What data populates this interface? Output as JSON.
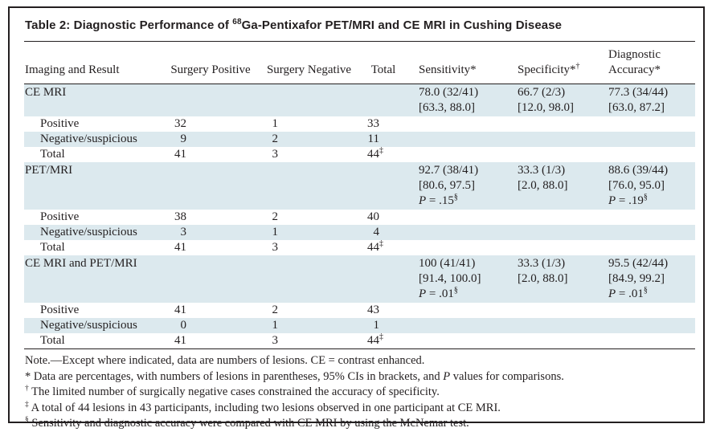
{
  "title": {
    "prefix": "Table 2: Diagnostic Performance of ",
    "isotope": "68",
    "suffix": "Ga-Pentixafor PET/MRI and CE MRI in Cushing Disease"
  },
  "columns": [
    {
      "label": "Imaging and Result",
      "sup": ""
    },
    {
      "label": "Surgery Positive",
      "sup": ""
    },
    {
      "label": "Surgery Negative",
      "sup": ""
    },
    {
      "label": "Total",
      "sup": ""
    },
    {
      "label": "Sensitivity*",
      "sup": ""
    },
    {
      "label": "Specificity*",
      "sup": "†"
    },
    {
      "label": "Diagnostic Accuracy*",
      "sup": ""
    }
  ],
  "sections": [
    {
      "label": "CE MRI",
      "sensitivity": {
        "value": "78.0 (32/41)",
        "ci": "[63.3, 88.0]",
        "p_label": "",
        "p_eq": "",
        "p_value": "",
        "p_sup": ""
      },
      "specificity": {
        "value": "66.7 (2/3)",
        "ci": "[12.0, 98.0]",
        "p_label": "",
        "p_eq": "",
        "p_value": "",
        "p_sup": ""
      },
      "accuracy": {
        "value": "77.3 (34/44)",
        "ci": "[63.0, 87.2]",
        "p_label": "",
        "p_eq": "",
        "p_value": "",
        "p_sup": ""
      },
      "rows": [
        {
          "label": "Positive",
          "surgery_positive": "32",
          "surgery_negative": "1",
          "total": "33",
          "total_sup": ""
        },
        {
          "label": "Negative/suspicious",
          "surgery_positive": "9",
          "surgery_negative": "2",
          "total": "11",
          "total_sup": ""
        },
        {
          "label": "Total",
          "surgery_positive": "41",
          "surgery_negative": "3",
          "total": "44",
          "total_sup": "‡"
        }
      ]
    },
    {
      "label": "PET/MRI",
      "sensitivity": {
        "value": "92.7 (38/41)",
        "ci": "[80.6, 97.5]",
        "p_label": "P",
        "p_eq": " = ",
        "p_value": ".15",
        "p_sup": "§"
      },
      "specificity": {
        "value": "33.3 (1/3)",
        "ci": "[2.0, 88.0]",
        "p_label": "",
        "p_eq": "",
        "p_value": "",
        "p_sup": ""
      },
      "accuracy": {
        "value": "88.6 (39/44)",
        "ci": "[76.0, 95.0]",
        "p_label": "P",
        "p_eq": " = ",
        "p_value": ".19",
        "p_sup": "§"
      },
      "rows": [
        {
          "label": "Positive",
          "surgery_positive": "38",
          "surgery_negative": "2",
          "total": "40",
          "total_sup": ""
        },
        {
          "label": "Negative/suspicious",
          "surgery_positive": "3",
          "surgery_negative": "1",
          "total": "4",
          "total_sup": ""
        },
        {
          "label": "Total",
          "surgery_positive": "41",
          "surgery_negative": "3",
          "total": "44",
          "total_sup": "‡"
        }
      ]
    },
    {
      "label": "CE MRI and PET/MRI",
      "sensitivity": {
        "value": "100 (41/41)",
        "ci": "[91.4, 100.0]",
        "p_label": "P",
        "p_eq": " = ",
        "p_value": ".01",
        "p_sup": "§"
      },
      "specificity": {
        "value": "33.3 (1/3)",
        "ci": "[2.0, 88.0]",
        "p_label": "",
        "p_eq": "",
        "p_value": "",
        "p_sup": ""
      },
      "accuracy": {
        "value": "95.5 (42/44)",
        "ci": "[84.9, 99.2]",
        "p_label": "P",
        "p_eq": " = ",
        "p_value": ".01",
        "p_sup": "§"
      },
      "rows": [
        {
          "label": "Positive",
          "surgery_positive": "41",
          "surgery_negative": "2",
          "total": "43",
          "total_sup": ""
        },
        {
          "label": "Negative/suspicious",
          "surgery_positive": "0",
          "surgery_negative": "1",
          "total": "1",
          "total_sup": ""
        },
        {
          "label": "Total",
          "surgery_positive": "41",
          "surgery_negative": "3",
          "total": "44",
          "total_sup": "‡"
        }
      ]
    }
  ],
  "footnotes": {
    "note": "Note.—Except where indicated, data are numbers of lesions. CE = contrast enhanced.",
    "items": [
      {
        "marker": "*",
        "pre": "Data are percentages, with numbers of lesions in parentheses, 95% CIs in brackets, and ",
        "italic": "P",
        "post": " values for comparisons."
      },
      {
        "marker": "†",
        "pre": "The limited number of surgically negative cases constrained the accuracy of specificity.",
        "italic": "",
        "post": ""
      },
      {
        "marker": "‡",
        "pre": "A total of 44 lesions in 43 participants, including two lesions observed in one participant at CE MRI.",
        "italic": "",
        "post": ""
      },
      {
        "marker": "§",
        "pre": "Sensitivity and diagnostic accuracy were compared with CE MRI by using the McNemar test.",
        "italic": "",
        "post": ""
      }
    ]
  },
  "colors": {
    "row_shade": "#dce9ee",
    "border": "#231f20",
    "text": "#231f20"
  }
}
